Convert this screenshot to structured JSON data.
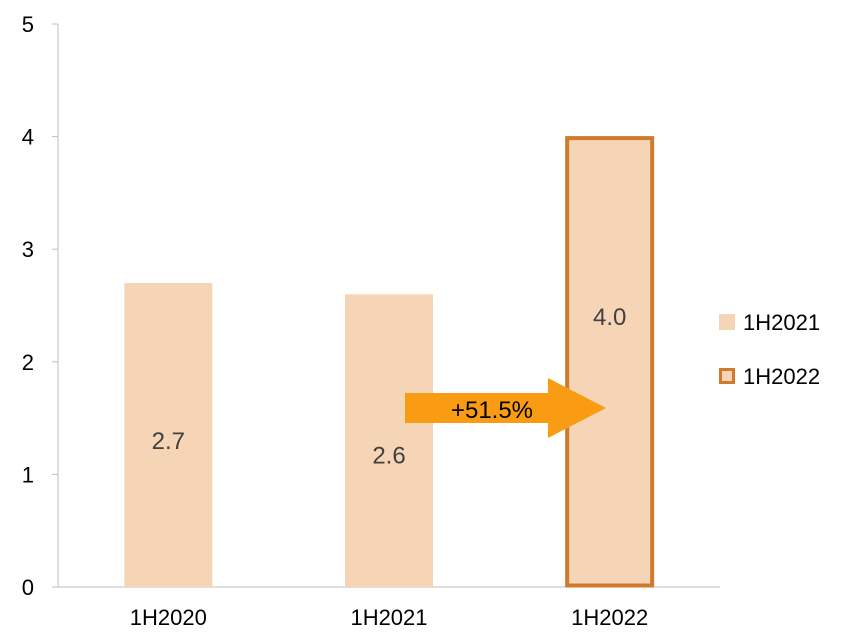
{
  "chart_data": {
    "type": "bar",
    "categories": [
      "1H2020",
      "1H2021",
      "1H2022"
    ],
    "values": [
      2.7,
      2.6,
      4.0
    ],
    "data_labels": [
      "2.7",
      "2.6",
      "4.0"
    ],
    "y_ticks": [
      "0",
      "1",
      "2",
      "3",
      "4",
      "5"
    ],
    "ylim": [
      0,
      5
    ],
    "title": "",
    "xlabel": "",
    "ylabel": "",
    "grid": false,
    "legend": {
      "placement": "right",
      "entries": [
        {
          "label": "1H2021",
          "style": "filled"
        },
        {
          "label": "1H2022",
          "style": "outlined"
        }
      ]
    },
    "highlighted_category": "1H2022",
    "annotation": {
      "text": "+51.5%",
      "from": "1H2021",
      "to": "1H2022"
    },
    "colors": {
      "bar_fill": "#F6D5B6",
      "highlight_outline": "#D07A2C",
      "arrow": "#F99C13",
      "axis": "#BFBFBF"
    }
  }
}
